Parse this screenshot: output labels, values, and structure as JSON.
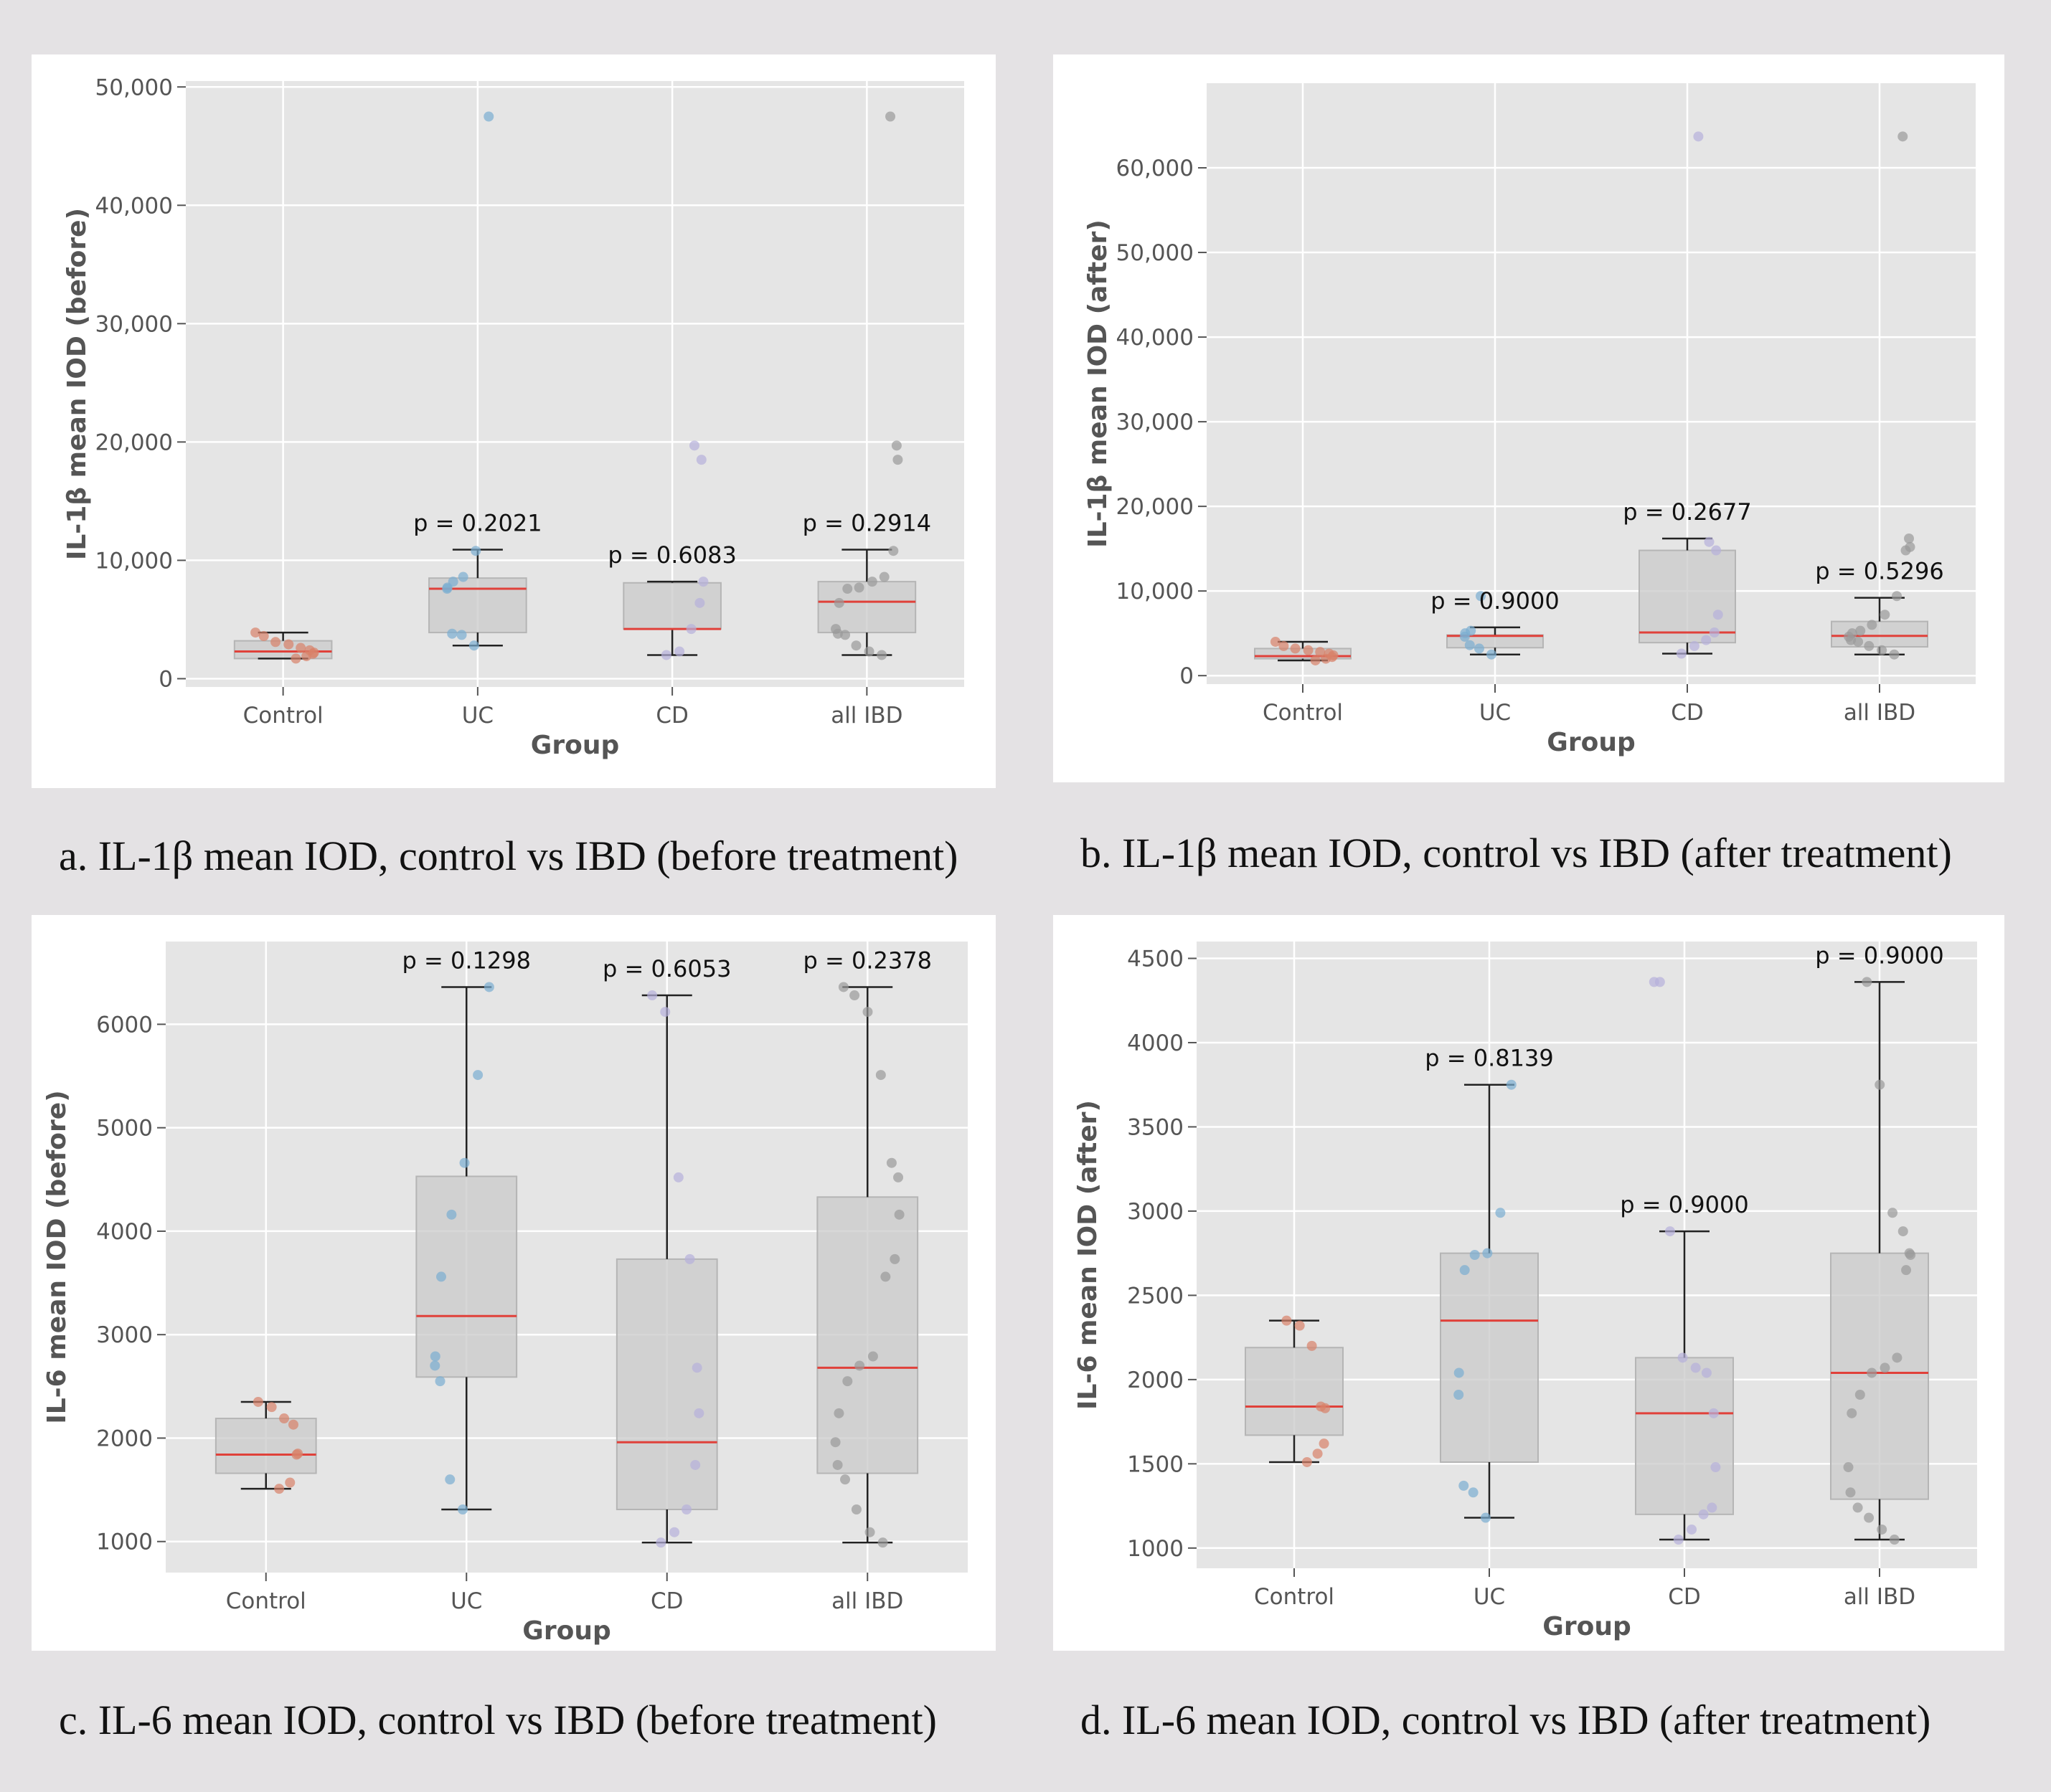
{
  "charts": [
    {
      "caption": "a. IL-1β mean IOD, control vs IBD (before treatment)"
    },
    {
      "caption": "b. IL-1β mean IOD, control vs IBD (after treatment)"
    },
    {
      "caption": "c. IL-6 mean IOD, control vs IBD (before treatment)"
    },
    {
      "caption": "d. IL-6 mean IOD, control vs IBD (after treatment)"
    }
  ],
  "chart_data": [
    {
      "type": "box",
      "xlabel": "Group",
      "ylabel": "IL-1β mean IOD (before)",
      "categories": [
        "Control",
        "UC",
        "CD",
        "all IBD"
      ],
      "ylim": [
        -700,
        50500
      ],
      "yticks": [
        0,
        10000,
        20000,
        30000,
        40000,
        50000
      ],
      "ytick_labels": [
        "0",
        "10,000",
        "20,000",
        "30,000",
        "40,000",
        "50,000"
      ],
      "boxes": [
        {
          "q1": 1700,
          "median": 2300,
          "q3": 3200,
          "whisker_low": 1700,
          "whisker_high": 3900
        },
        {
          "q1": 3900,
          "median": 7600,
          "q3": 8500,
          "whisker_low": 2800,
          "whisker_high": 10900
        },
        {
          "q1": 4200,
          "median": 4200,
          "q3": 8100,
          "whisker_low": 2000,
          "whisker_high": 8200
        },
        {
          "q1": 3900,
          "median": 6500,
          "q3": 8200,
          "whisker_low": 2000,
          "whisker_high": 10900
        }
      ],
      "points": [
        [
          1700,
          1900,
          2100,
          2200,
          2400,
          2600,
          2900,
          3100,
          3600,
          3900
        ],
        [
          2800,
          3700,
          3800,
          7600,
          7700,
          8200,
          8600,
          10800,
          47500
        ],
        [
          2000,
          2300,
          4200,
          6400,
          8200,
          18500,
          19700
        ],
        [
          2000,
          2300,
          2800,
          3700,
          3800,
          4200,
          6400,
          7600,
          7700,
          8200,
          8600,
          10800,
          18500,
          19700,
          47500
        ]
      ],
      "point_colors": [
        "#d9826a",
        "#7aaed2",
        "#b7b0dc",
        "#9a9a9a"
      ],
      "pvalues": [
        "",
        "p = 0.2021",
        "p = 0.6083",
        "p = 0.2914"
      ]
    },
    {
      "type": "box",
      "xlabel": "Group",
      "ylabel": "IL-1β mean IOD (after)",
      "categories": [
        "Control",
        "UC",
        "CD",
        "all IBD"
      ],
      "ylim": [
        -1000,
        70000
      ],
      "yticks": [
        0,
        10000,
        20000,
        30000,
        40000,
        50000,
        60000
      ],
      "ytick_labels": [
        "0",
        "10,000",
        "20,000",
        "30,000",
        "40,000",
        "50,000",
        "60,000"
      ],
      "boxes": [
        {
          "q1": 2000,
          "median": 2300,
          "q3": 3200,
          "whisker_low": 1800,
          "whisker_high": 4000
        },
        {
          "q1": 3300,
          "median": 4700,
          "q3": 4800,
          "whisker_low": 2500,
          "whisker_high": 5700
        },
        {
          "q1": 3900,
          "median": 5100,
          "q3": 14800,
          "whisker_low": 2600,
          "whisker_high": 16200
        },
        {
          "q1": 3400,
          "median": 4700,
          "q3": 6400,
          "whisker_low": 2500,
          "whisker_high": 9200
        }
      ],
      "points": [
        [
          1800,
          2000,
          2200,
          2400,
          2600,
          2800,
          3000,
          3200,
          3500,
          4000
        ],
        [
          2500,
          3200,
          3600,
          4600,
          5000,
          5300,
          9400
        ],
        [
          2600,
          3500,
          4200,
          5100,
          7200,
          14800,
          15800,
          63700
        ],
        [
          2500,
          3000,
          3500,
          4000,
          4200,
          4600,
          5000,
          5300,
          6000,
          7200,
          9400,
          14800,
          15200,
          16200,
          63700
        ]
      ],
      "point_colors": [
        "#d9826a",
        "#7aaed2",
        "#b7b0dc",
        "#9a9a9a"
      ],
      "pvalues": [
        "",
        "p = 0.9000",
        "p = 0.2677",
        "p = 0.5296"
      ]
    },
    {
      "type": "box",
      "xlabel": "Group",
      "ylabel": "IL-6 mean IOD (before)",
      "categories": [
        "Control",
        "UC",
        "CD",
        "all IBD"
      ],
      "ylim": [
        700,
        6800
      ],
      "yticks": [
        1000,
        2000,
        3000,
        4000,
        5000,
        6000
      ],
      "ytick_labels": [
        "1000",
        "2000",
        "3000",
        "4000",
        "5000",
        "6000"
      ],
      "boxes": [
        {
          "q1": 1660,
          "median": 1840,
          "q3": 2190,
          "whisker_low": 1510,
          "whisker_high": 2350
        },
        {
          "q1": 2590,
          "median": 3180,
          "q3": 4530,
          "whisker_low": 1310,
          "whisker_high": 6360
        },
        {
          "q1": 1310,
          "median": 1960,
          "q3": 3730,
          "whisker_low": 990,
          "whisker_high": 6280
        },
        {
          "q1": 1660,
          "median": 2680,
          "q3": 4330,
          "whisker_low": 990,
          "whisker_high": 6360
        }
      ],
      "points": [
        [
          1510,
          1570,
          1840,
          1850,
          2130,
          2190,
          2300,
          2350
        ],
        [
          1310,
          1600,
          2550,
          2700,
          2790,
          3560,
          4160,
          4660,
          5510,
          6360
        ],
        [
          990,
          1090,
          1310,
          1740,
          2240,
          2680,
          3730,
          4520,
          6120,
          6280
        ],
        [
          990,
          1090,
          1310,
          1600,
          1740,
          1960,
          2240,
          2550,
          2700,
          2790,
          3560,
          3730,
          4160,
          4520,
          4660,
          5510,
          6120,
          6280,
          6360
        ]
      ],
      "point_colors": [
        "#d9826a",
        "#7aaed2",
        "#b7b0dc",
        "#9a9a9a"
      ],
      "pvalues": [
        "",
        "p = 0.1298",
        "p = 0.6053",
        "p = 0.2378"
      ]
    },
    {
      "type": "box",
      "xlabel": "Group",
      "ylabel": "IL-6 mean IOD (after)",
      "categories": [
        "Control",
        "UC",
        "CD",
        "all IBD"
      ],
      "ylim": [
        880,
        4600
      ],
      "yticks": [
        1000,
        1500,
        2000,
        2500,
        3000,
        3500,
        4000,
        4500
      ],
      "ytick_labels": [
        "1000",
        "1500",
        "2000",
        "2500",
        "3000",
        "3500",
        "4000",
        "4500"
      ],
      "boxes": [
        {
          "q1": 1670,
          "median": 1840,
          "q3": 2190,
          "whisker_low": 1510,
          "whisker_high": 2350
        },
        {
          "q1": 1510,
          "median": 2350,
          "q3": 2750,
          "whisker_low": 1180,
          "whisker_high": 3750
        },
        {
          "q1": 1200,
          "median": 1800,
          "q3": 2130,
          "whisker_low": 1050,
          "whisker_high": 2880
        },
        {
          "q1": 1290,
          "median": 2040,
          "q3": 2750,
          "whisker_low": 1050,
          "whisker_high": 4360
        }
      ],
      "points": [
        [
          1510,
          1560,
          1620,
          1830,
          1840,
          2200,
          2320,
          2350
        ],
        [
          1180,
          1330,
          1370,
          1910,
          2040,
          2650,
          2740,
          2750,
          2990,
          3750
        ],
        [
          1050,
          1110,
          1200,
          1240,
          1480,
          1800,
          2040,
          2070,
          2130,
          2880,
          4360,
          4360
        ],
        [
          1050,
          1110,
          1180,
          1240,
          1330,
          1480,
          1800,
          1910,
          2040,
          2070,
          2130,
          2650,
          2740,
          2750,
          2880,
          2990,
          3750,
          4360
        ]
      ],
      "point_colors": [
        "#d9826a",
        "#7aaed2",
        "#b7b0dc",
        "#9a9a9a"
      ],
      "pvalues": [
        "",
        "p = 0.8139",
        "p = 0.9000",
        "p = 0.9000"
      ]
    }
  ]
}
